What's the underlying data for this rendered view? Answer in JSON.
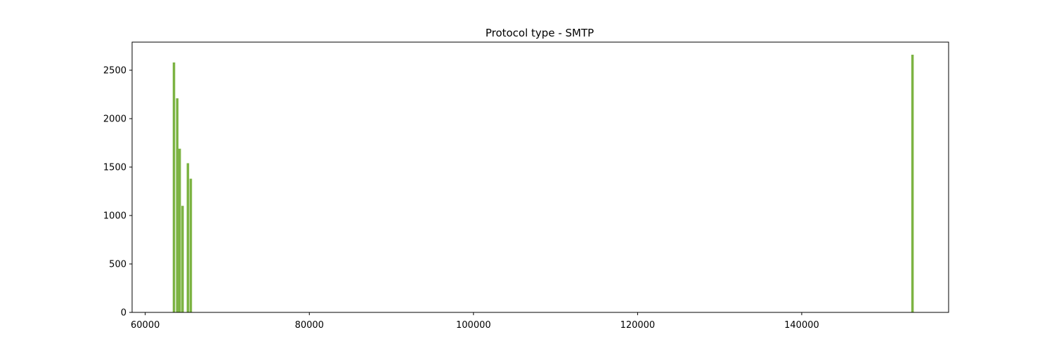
{
  "chart_data": {
    "type": "bar",
    "title": "Protocol type - SMTP",
    "xlabel": "",
    "ylabel": "",
    "xlim": [
      58400,
      157900
    ],
    "ylim": [
      0,
      2790
    ],
    "xticks": [
      60000,
      80000,
      100000,
      120000,
      140000
    ],
    "yticks": [
      0,
      500,
      1000,
      1500,
      2000,
      2500
    ],
    "bar_color": "#7cb342",
    "bar_width": 300,
    "x": [
      63500,
      63900,
      64200,
      64550,
      65200,
      65550,
      153500
    ],
    "values": [
      2580,
      2210,
      1690,
      1100,
      1540,
      1380,
      2660
    ],
    "grid": false,
    "legend": false
  }
}
